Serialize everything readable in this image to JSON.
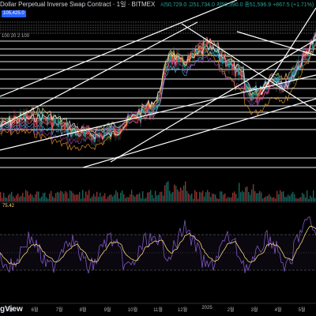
{
  "header": {
    "title": "Dollar Perpetual Inverse Swap Contract · 1일 · BITMEX",
    "ohlc": "시50,729.0 고51,734.0 저50,390.0 종51,596.9 +867.5 (+1.71%)",
    "last_price": "105,425.0",
    "ma_legend": "100 20 2 100"
  },
  "rsi": {
    "value": "75.42"
  },
  "x_axis": {
    "labels": [
      "5월",
      "6월",
      "7월",
      "8월",
      "9월",
      "10월",
      "11월",
      "12월",
      "2025",
      "2월",
      "3월",
      "4월",
      "5월"
    ]
  },
  "logo": {
    "text": "gView"
  },
  "colors": {
    "background": "#000000",
    "up": "#26a69a",
    "down": "#ef5350",
    "rsi": "#7e57c2",
    "rsi_ma": "#f5d776",
    "trendline": "#ffffff"
  }
}
